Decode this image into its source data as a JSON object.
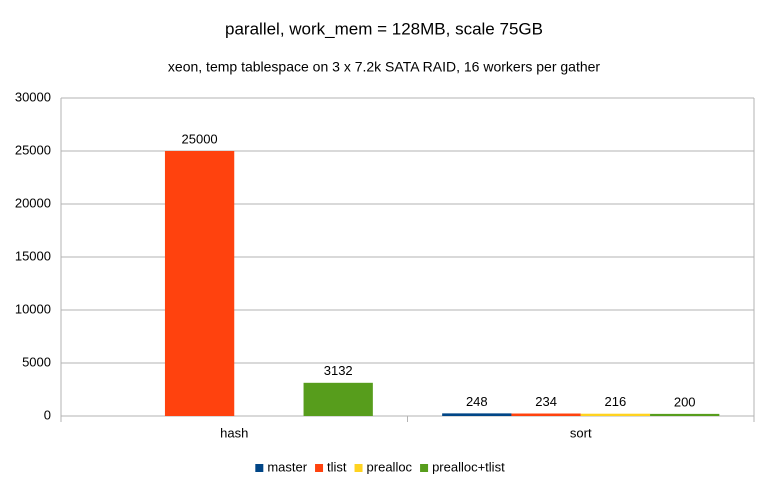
{
  "chart_data": {
    "type": "bar",
    "title": "parallel, work_mem = 128MB, scale 75GB",
    "subtitle": "xeon, temp tablespace on 3 x 7.2k SATA RAID, 16 workers per gather",
    "categories": [
      "hash",
      "sort"
    ],
    "series": [
      {
        "name": "master",
        "color": "#004586",
        "values": [
          null,
          248
        ]
      },
      {
        "name": "tlist",
        "color": "#ff420e",
        "values": [
          25000,
          234
        ]
      },
      {
        "name": "prealloc",
        "color": "#ffd320",
        "values": [
          null,
          216
        ]
      },
      {
        "name": "prealloc+tlist",
        "color": "#579d1c",
        "values": [
          3132,
          200
        ]
      }
    ],
    "ylim": [
      0,
      30000
    ],
    "yticks": [
      0,
      5000,
      10000,
      15000,
      20000,
      25000,
      30000
    ],
    "grid": true,
    "legend": "bottom"
  }
}
